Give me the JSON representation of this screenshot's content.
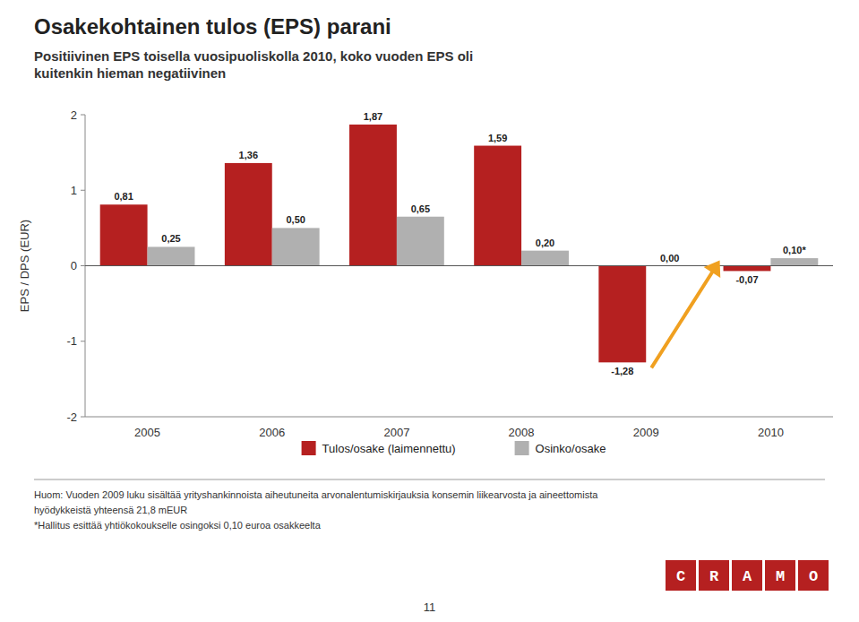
{
  "chart_data": {
    "type": "bar",
    "title": "Osakekohtainen tulos (EPS) parani",
    "subtitle": "Positiivinen EPS toisella vuosipuoliskolla 2010, koko vuoden EPS oli\nkuitenkin hieman negatiivinen",
    "ylabel": "EPS / DPS (EUR)",
    "categories": [
      "2005",
      "2006",
      "2007",
      "2008",
      "2009",
      "2010"
    ],
    "series": [
      {
        "name": "Tulos/osake (laimennettu)",
        "color": "#b52020",
        "values": [
          0.81,
          1.36,
          1.87,
          1.59,
          -1.28,
          -0.07
        ],
        "value_labels": [
          "0,81",
          "1,36",
          "1,87",
          "1,59",
          "-1,28",
          "-0,07"
        ]
      },
      {
        "name": "Osinko/osake",
        "color": "#b0b0b0",
        "values": [
          0.25,
          0.5,
          0.65,
          0.2,
          0.0,
          0.1
        ],
        "value_labels": [
          "0,25",
          "0,50",
          "0,65",
          "0,20",
          "0,00",
          "0,10*"
        ]
      }
    ],
    "ylim": [
      -2,
      2
    ],
    "yticks": [
      -2,
      -1,
      0,
      1,
      2
    ],
    "grid": false,
    "legend": "bottom",
    "data_labels": true,
    "footnotes": [
      "Huom: Vuoden 2009 luku sisältää yrityshankinnoista aiheutuneita arvonalentumiskirjauksia konsemin liikearvosta ja aineettomista",
      "hyödykkeistä yhteensä 21,8 mEUR",
      "*Hallitus esittää yhtiökokoukselle osingoksi 0,10 euroa osakkeelta"
    ],
    "page_number": "11",
    "logo": "CRAMO"
  }
}
